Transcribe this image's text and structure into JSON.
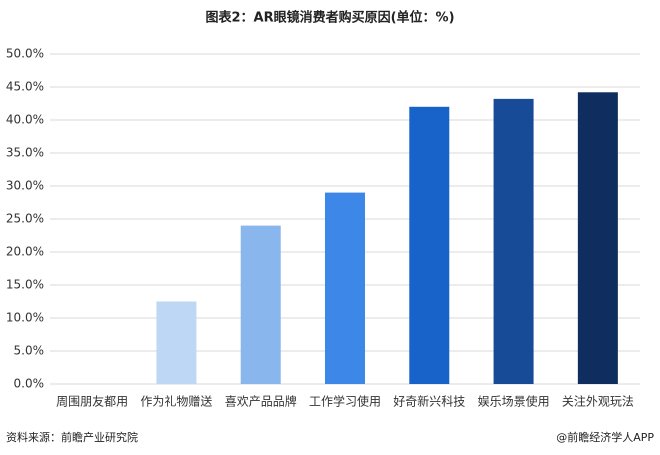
{
  "chart_data": {
    "type": "bar",
    "title": "图表2：AR眼镜消费者购买原因(单位：%)",
    "categories": [
      "周围朋友都用",
      "作为礼物赠送",
      "喜欢产品品牌",
      "工作学习使用",
      "好奇新兴科技",
      "娱乐场景使用",
      "关注外观玩法"
    ],
    "values": [
      0,
      12.5,
      24,
      29,
      42,
      43.2,
      44.2
    ],
    "colors": [
      "#dbe8f8",
      "#bdd7f5",
      "#8ab6ee",
      "#3d87e8",
      "#1763c9",
      "#174a97",
      "#0f2d5e"
    ],
    "ylim": [
      0,
      50
    ],
    "yticks": [
      {
        "value": 0,
        "label": "0.0%"
      },
      {
        "value": 5,
        "label": "5.0%"
      },
      {
        "value": 10,
        "label": "10.0%"
      },
      {
        "value": 15,
        "label": "15.0%"
      },
      {
        "value": 20,
        "label": "20.0%"
      },
      {
        "value": 25,
        "label": "25.0%"
      },
      {
        "value": 30,
        "label": "30.0%"
      },
      {
        "value": 35,
        "label": "35.0%"
      },
      {
        "value": 40,
        "label": "40.0%"
      },
      {
        "value": 45,
        "label": "45.0%"
      },
      {
        "value": 50,
        "label": "50.0%"
      }
    ],
    "grid": true
  },
  "footer": {
    "source": "资料来源：前瞻产业研究院",
    "brand": "@前瞻经济学人APP"
  }
}
